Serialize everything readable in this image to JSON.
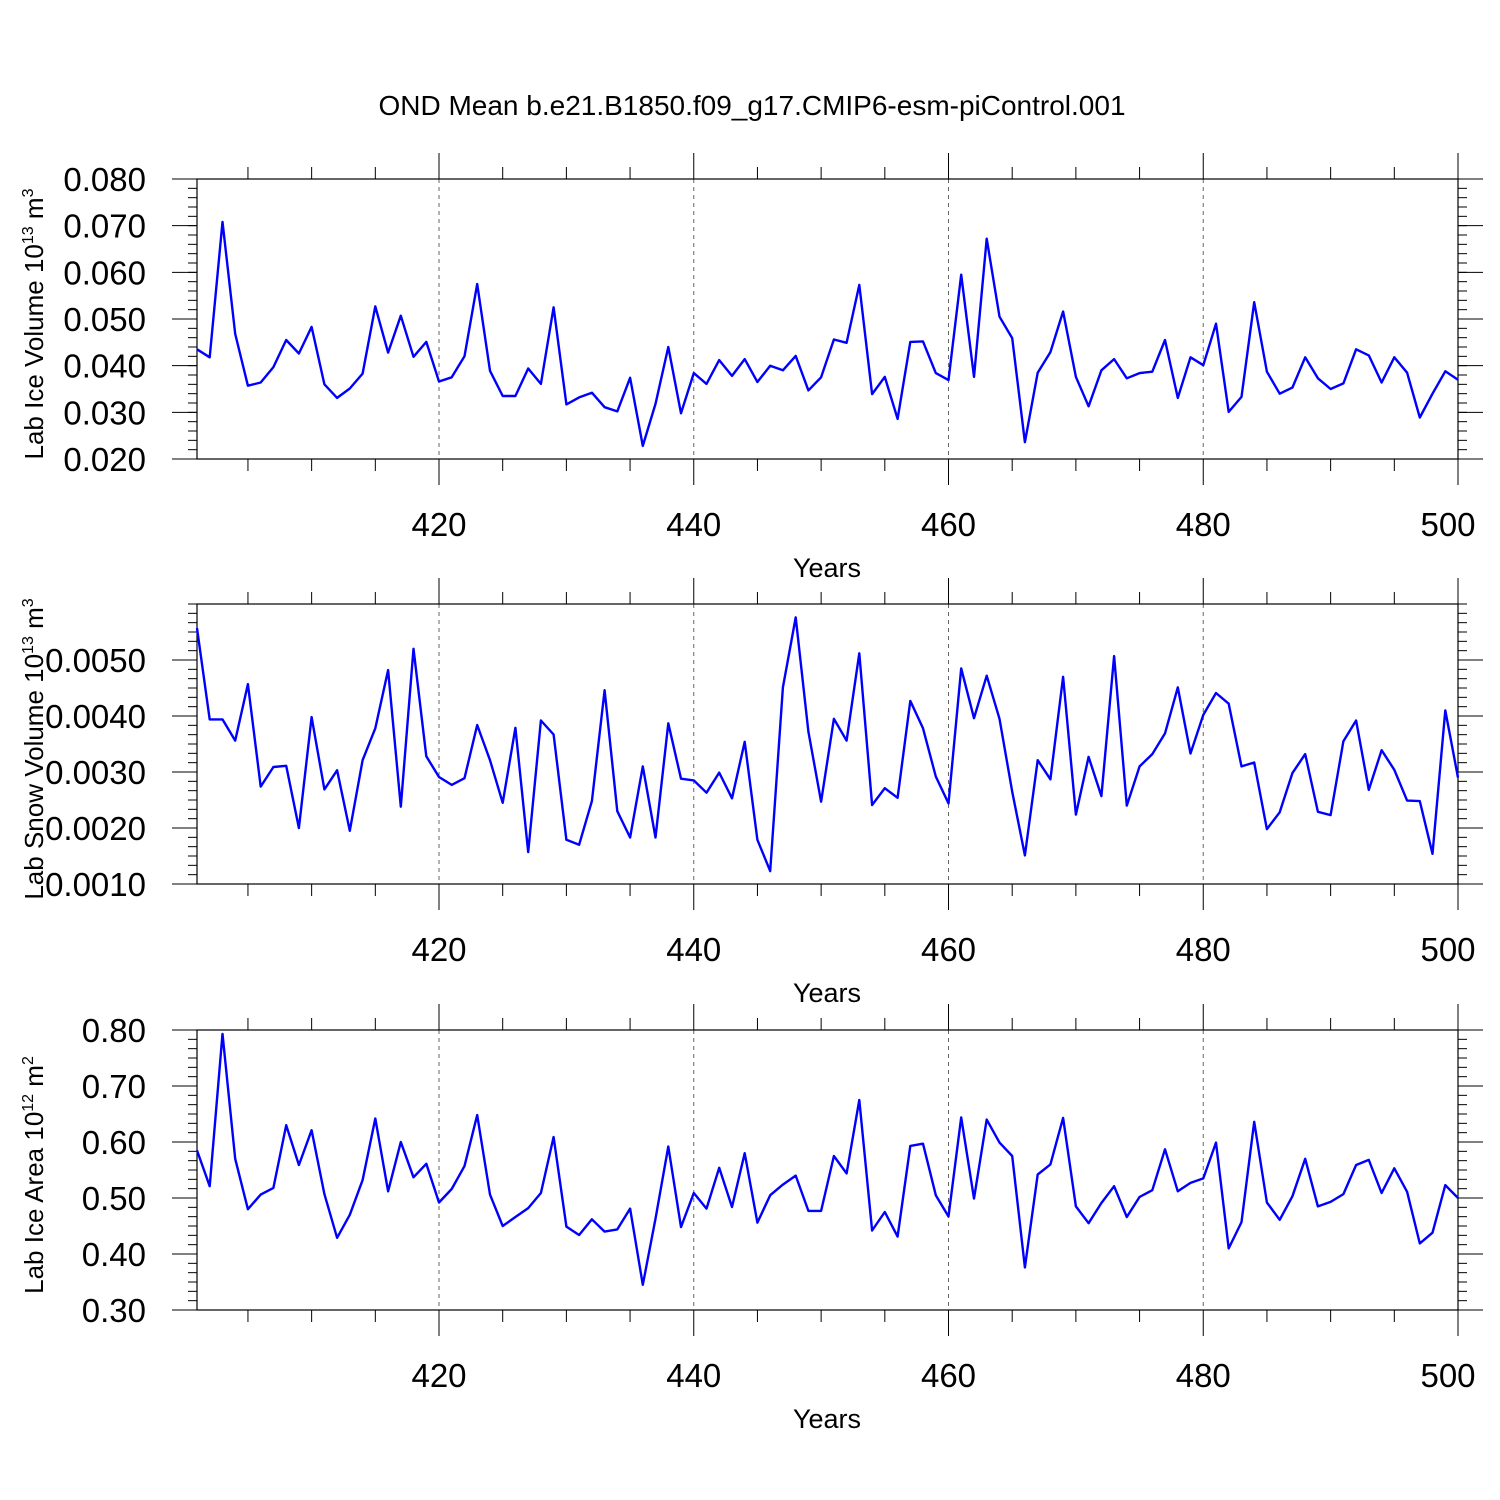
{
  "title": "OND Mean b.e21.B1850.f09_g17.CMIP6-esm-piControl.001",
  "colors": {
    "series": "#0000ff",
    "axis": "#000000",
    "grid": "#666666"
  },
  "chart_data": [
    {
      "type": "line",
      "xlabel": "Years",
      "ylabel": "Lab Ice Volume 10",
      "ylabel_sup": "13",
      "ylabel_unit": " m",
      "ylabel_unit_sup": "3",
      "xlim": [
        401,
        500
      ],
      "ylim": [
        0.02,
        0.08
      ],
      "grid": "vertical dashed at major x ticks",
      "x_ticks": [
        420,
        440,
        460,
        480,
        500
      ],
      "x_tick_labels": [
        "420",
        "440",
        "460",
        "480",
        "500"
      ],
      "y_ticks": [
        0.02,
        0.03,
        0.04,
        0.05,
        0.06,
        0.07,
        0.08
      ],
      "y_tick_labels": [
        "0.020",
        "0.030",
        "0.040",
        "0.050",
        "0.060",
        "0.070",
        "0.080"
      ],
      "x_start": 401,
      "values": [
        0.0435,
        0.0418,
        0.0708,
        0.0468,
        0.0357,
        0.0364,
        0.0397,
        0.0455,
        0.0426,
        0.0483,
        0.036,
        0.0331,
        0.0351,
        0.0383,
        0.0527,
        0.0428,
        0.0507,
        0.0419,
        0.0451,
        0.0366,
        0.0375,
        0.042,
        0.0575,
        0.0389,
        0.0335,
        0.0335,
        0.0394,
        0.0361,
        0.0525,
        0.0317,
        0.0332,
        0.0342,
        0.0311,
        0.0302,
        0.0374,
        0.0228,
        0.0318,
        0.044,
        0.0298,
        0.0384,
        0.0361,
        0.0412,
        0.0378,
        0.0414,
        0.0365,
        0.04,
        0.039,
        0.0421,
        0.0347,
        0.0375,
        0.0456,
        0.0449,
        0.0573,
        0.0339,
        0.0376,
        0.0286,
        0.0451,
        0.0452,
        0.0384,
        0.0369,
        0.0595,
        0.0376,
        0.0672,
        0.0505,
        0.0459,
        0.0236,
        0.0385,
        0.0429,
        0.0516,
        0.0376,
        0.0313,
        0.039,
        0.0414,
        0.0373,
        0.0384,
        0.0387,
        0.0455,
        0.0331,
        0.0418,
        0.0401,
        0.049,
        0.0301,
        0.0333,
        0.0536,
        0.0387,
        0.034,
        0.0353,
        0.0418,
        0.0373,
        0.035,
        0.0362,
        0.0435,
        0.0422,
        0.0364,
        0.0418,
        0.0385,
        0.0289,
        0.034,
        0.0388,
        0.037
      ]
    },
    {
      "type": "line",
      "xlabel": "Years",
      "ylabel": "Lab Snow Volume 10",
      "ylabel_sup": "13",
      "ylabel_unit": " m",
      "ylabel_unit_sup": "3",
      "xlim": [
        401,
        500
      ],
      "ylim": [
        0.001,
        0.006
      ],
      "grid": "vertical dashed at major x ticks",
      "x_ticks": [
        420,
        440,
        460,
        480,
        500
      ],
      "x_tick_labels": [
        "420",
        "440",
        "460",
        "480",
        "500"
      ],
      "y_ticks": [
        0.001,
        0.002,
        0.003,
        0.004,
        0.005
      ],
      "y_tick_labels": [
        "0.0010",
        "0.0020",
        "0.0030",
        "0.0040",
        "0.0050"
      ],
      "x_start": 401,
      "values": [
        0.00557,
        0.00394,
        0.00394,
        0.00356,
        0.00457,
        0.00274,
        0.00309,
        0.00311,
        0.002,
        0.00398,
        0.00269,
        0.00303,
        0.00195,
        0.00321,
        0.00378,
        0.00482,
        0.00238,
        0.0052,
        0.00328,
        0.00291,
        0.00277,
        0.00289,
        0.00384,
        0.00321,
        0.00245,
        0.00379,
        0.00157,
        0.00392,
        0.00367,
        0.00179,
        0.0017,
        0.00248,
        0.00446,
        0.0023,
        0.00183,
        0.0031,
        0.00183,
        0.00387,
        0.00288,
        0.00285,
        0.00263,
        0.00299,
        0.00253,
        0.00354,
        0.00179,
        0.00123,
        0.00451,
        0.00576,
        0.00372,
        0.00247,
        0.00395,
        0.00356,
        0.00512,
        0.00241,
        0.00271,
        0.00254,
        0.00427,
        0.00378,
        0.00292,
        0.00244,
        0.00485,
        0.00396,
        0.00472,
        0.00395,
        0.00265,
        0.00151,
        0.00321,
        0.00287,
        0.0047,
        0.00224,
        0.00327,
        0.00257,
        0.00507,
        0.0024,
        0.0031,
        0.00332,
        0.00369,
        0.00451,
        0.00333,
        0.00402,
        0.00441,
        0.00422,
        0.0031,
        0.00317,
        0.00198,
        0.00228,
        0.00298,
        0.00332,
        0.00229,
        0.00223,
        0.00355,
        0.00392,
        0.00268,
        0.00339,
        0.00304,
        0.00249,
        0.00248,
        0.00154,
        0.0041,
        0.0029
      ]
    },
    {
      "type": "line",
      "xlabel": "Years",
      "ylabel": "Lab Ice Area 10",
      "ylabel_sup": "12",
      "ylabel_unit": " m",
      "ylabel_unit_sup": "2",
      "xlim": [
        401,
        500
      ],
      "ylim": [
        0.3,
        0.8
      ],
      "grid": "vertical dashed at major x ticks",
      "x_ticks": [
        420,
        440,
        460,
        480,
        500
      ],
      "x_tick_labels": [
        "420",
        "440",
        "460",
        "480",
        "500"
      ],
      "y_ticks": [
        0.3,
        0.4,
        0.5,
        0.6,
        0.7,
        0.8
      ],
      "y_tick_labels": [
        "0.30",
        "0.40",
        "0.50",
        "0.60",
        "0.70",
        "0.80"
      ],
      "x_start": 401,
      "values": [
        0.585,
        0.521,
        0.793,
        0.57,
        0.48,
        0.506,
        0.518,
        0.63,
        0.559,
        0.621,
        0.507,
        0.429,
        0.47,
        0.532,
        0.642,
        0.512,
        0.6,
        0.537,
        0.561,
        0.492,
        0.516,
        0.557,
        0.648,
        0.506,
        0.45,
        0.466,
        0.482,
        0.509,
        0.609,
        0.449,
        0.434,
        0.462,
        0.44,
        0.444,
        0.481,
        0.345,
        0.463,
        0.592,
        0.448,
        0.509,
        0.481,
        0.554,
        0.484,
        0.58,
        0.456,
        0.505,
        0.524,
        0.54,
        0.477,
        0.477,
        0.575,
        0.544,
        0.675,
        0.442,
        0.475,
        0.431,
        0.593,
        0.597,
        0.505,
        0.467,
        0.644,
        0.499,
        0.64,
        0.599,
        0.575,
        0.376,
        0.542,
        0.56,
        0.643,
        0.485,
        0.455,
        0.491,
        0.521,
        0.466,
        0.502,
        0.514,
        0.587,
        0.512,
        0.527,
        0.535,
        0.599,
        0.41,
        0.457,
        0.636,
        0.492,
        0.461,
        0.503,
        0.57,
        0.485,
        0.493,
        0.507,
        0.559,
        0.568,
        0.509,
        0.553,
        0.511,
        0.419,
        0.438,
        0.523,
        0.5
      ]
    }
  ]
}
